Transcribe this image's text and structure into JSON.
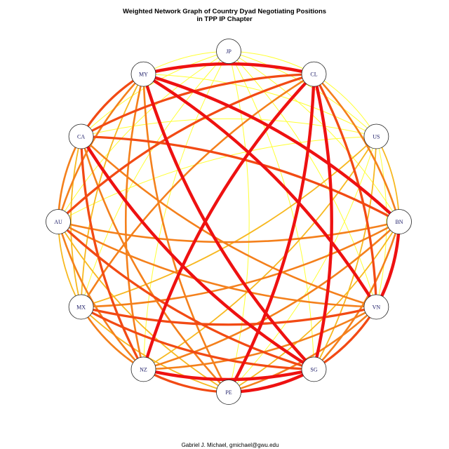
{
  "title_line1": "Weighted Network Graph of Country Dyad Negotiating Positions",
  "title_line2": "in TPP IP Chapter",
  "caption": "Gabriel J. Michael, gmichael@gwu.edu",
  "colors": {
    "strong": "#ee1111",
    "medium_high": "#f24a14",
    "medium": "#f4801c",
    "medium_low": "#f7b820",
    "weak": "#ffff33",
    "node_stroke": "#222222",
    "label": "#1a1a66"
  },
  "nodes": [
    {
      "id": "JP",
      "label": "JP"
    },
    {
      "id": "CL",
      "label": "CL"
    },
    {
      "id": "US",
      "label": "US"
    },
    {
      "id": "BN",
      "label": "BN"
    },
    {
      "id": "VN",
      "label": "VN"
    },
    {
      "id": "SG",
      "label": "SG"
    },
    {
      "id": "PE",
      "label": "PE"
    },
    {
      "id": "NZ",
      "label": "NZ"
    },
    {
      "id": "MX",
      "label": "MX"
    },
    {
      "id": "AU",
      "label": "AU"
    },
    {
      "id": "CA",
      "label": "CA"
    },
    {
      "id": "MY",
      "label": "MY"
    }
  ],
  "edges": [
    {
      "source": "MY",
      "target": "CL",
      "weight": 5
    },
    {
      "source": "MY",
      "target": "BN",
      "weight": 5
    },
    {
      "source": "MY",
      "target": "VN",
      "weight": 5
    },
    {
      "source": "MY",
      "target": "SG",
      "weight": 5
    },
    {
      "source": "MY",
      "target": "CA",
      "weight": 4
    },
    {
      "source": "MY",
      "target": "NZ",
      "weight": 3
    },
    {
      "source": "MY",
      "target": "PE",
      "weight": 3
    },
    {
      "source": "MY",
      "target": "AU",
      "weight": 3
    },
    {
      "source": "MY",
      "target": "MX",
      "weight": 2
    },
    {
      "source": "MY",
      "target": "JP",
      "weight": 1
    },
    {
      "source": "MY",
      "target": "US",
      "weight": 1
    },
    {
      "source": "CL",
      "target": "NZ",
      "weight": 5
    },
    {
      "source": "CL",
      "target": "SG",
      "weight": 5
    },
    {
      "source": "CL",
      "target": "PE",
      "weight": 5
    },
    {
      "source": "CL",
      "target": "VN",
      "weight": 4
    },
    {
      "source": "CL",
      "target": "CA",
      "weight": 4
    },
    {
      "source": "CL",
      "target": "AU",
      "weight": 4
    },
    {
      "source": "CL",
      "target": "MX",
      "weight": 3
    },
    {
      "source": "CL",
      "target": "BN",
      "weight": 3
    },
    {
      "source": "CL",
      "target": "JP",
      "weight": 1
    },
    {
      "source": "CL",
      "target": "US",
      "weight": 1
    },
    {
      "source": "CA",
      "target": "SG",
      "weight": 5
    },
    {
      "source": "CA",
      "target": "NZ",
      "weight": 4
    },
    {
      "source": "CA",
      "target": "BN",
      "weight": 4
    },
    {
      "source": "CA",
      "target": "VN",
      "weight": 3
    },
    {
      "source": "CA",
      "target": "PE",
      "weight": 3
    },
    {
      "source": "CA",
      "target": "AU",
      "weight": 3
    },
    {
      "source": "CA",
      "target": "MX",
      "weight": 2
    },
    {
      "source": "CA",
      "target": "JP",
      "weight": 1
    },
    {
      "source": "CA",
      "target": "US",
      "weight": 1
    },
    {
      "source": "AU",
      "target": "BN",
      "weight": 3
    },
    {
      "source": "AU",
      "target": "VN",
      "weight": 3
    },
    {
      "source": "AU",
      "target": "SG",
      "weight": 4
    },
    {
      "source": "AU",
      "target": "NZ",
      "weight": 3
    },
    {
      "source": "AU",
      "target": "MX",
      "weight": 2
    },
    {
      "source": "AU",
      "target": "PE",
      "weight": 2
    },
    {
      "source": "AU",
      "target": "JP",
      "weight": 1
    },
    {
      "source": "AU",
      "target": "US",
      "weight": 1
    },
    {
      "source": "MX",
      "target": "BN",
      "weight": 3
    },
    {
      "source": "MX",
      "target": "VN",
      "weight": 4
    },
    {
      "source": "MX",
      "target": "SG",
      "weight": 4
    },
    {
      "source": "MX",
      "target": "NZ",
      "weight": 3
    },
    {
      "source": "MX",
      "target": "PE",
      "weight": 2
    },
    {
      "source": "MX",
      "target": "JP",
      "weight": 1
    },
    {
      "source": "MX",
      "target": "US",
      "weight": 2
    },
    {
      "source": "NZ",
      "target": "SG",
      "weight": 5
    },
    {
      "source": "NZ",
      "target": "PE",
      "weight": 4
    },
    {
      "source": "NZ",
      "target": "VN",
      "weight": 3
    },
    {
      "source": "NZ",
      "target": "BN",
      "weight": 3
    },
    {
      "source": "NZ",
      "target": "JP",
      "weight": 1
    },
    {
      "source": "NZ",
      "target": "US",
      "weight": 2
    },
    {
      "source": "PE",
      "target": "SG",
      "weight": 5
    },
    {
      "source": "PE",
      "target": "VN",
      "weight": 3
    },
    {
      "source": "PE",
      "target": "BN",
      "weight": 2
    },
    {
      "source": "PE",
      "target": "JP",
      "weight": 1
    },
    {
      "source": "PE",
      "target": "US",
      "weight": 1
    },
    {
      "source": "SG",
      "target": "VN",
      "weight": 4
    },
    {
      "source": "SG",
      "target": "BN",
      "weight": 3
    },
    {
      "source": "SG",
      "target": "JP",
      "weight": 1
    },
    {
      "source": "SG",
      "target": "US",
      "weight": 2
    },
    {
      "source": "VN",
      "target": "BN",
      "weight": 5
    },
    {
      "source": "VN",
      "target": "JP",
      "weight": 1
    },
    {
      "source": "VN",
      "target": "US",
      "weight": 1
    },
    {
      "source": "BN",
      "target": "JP",
      "weight": 1
    },
    {
      "source": "BN",
      "target": "US",
      "weight": 2
    },
    {
      "source": "US",
      "target": "JP",
      "weight": 1
    }
  ]
}
